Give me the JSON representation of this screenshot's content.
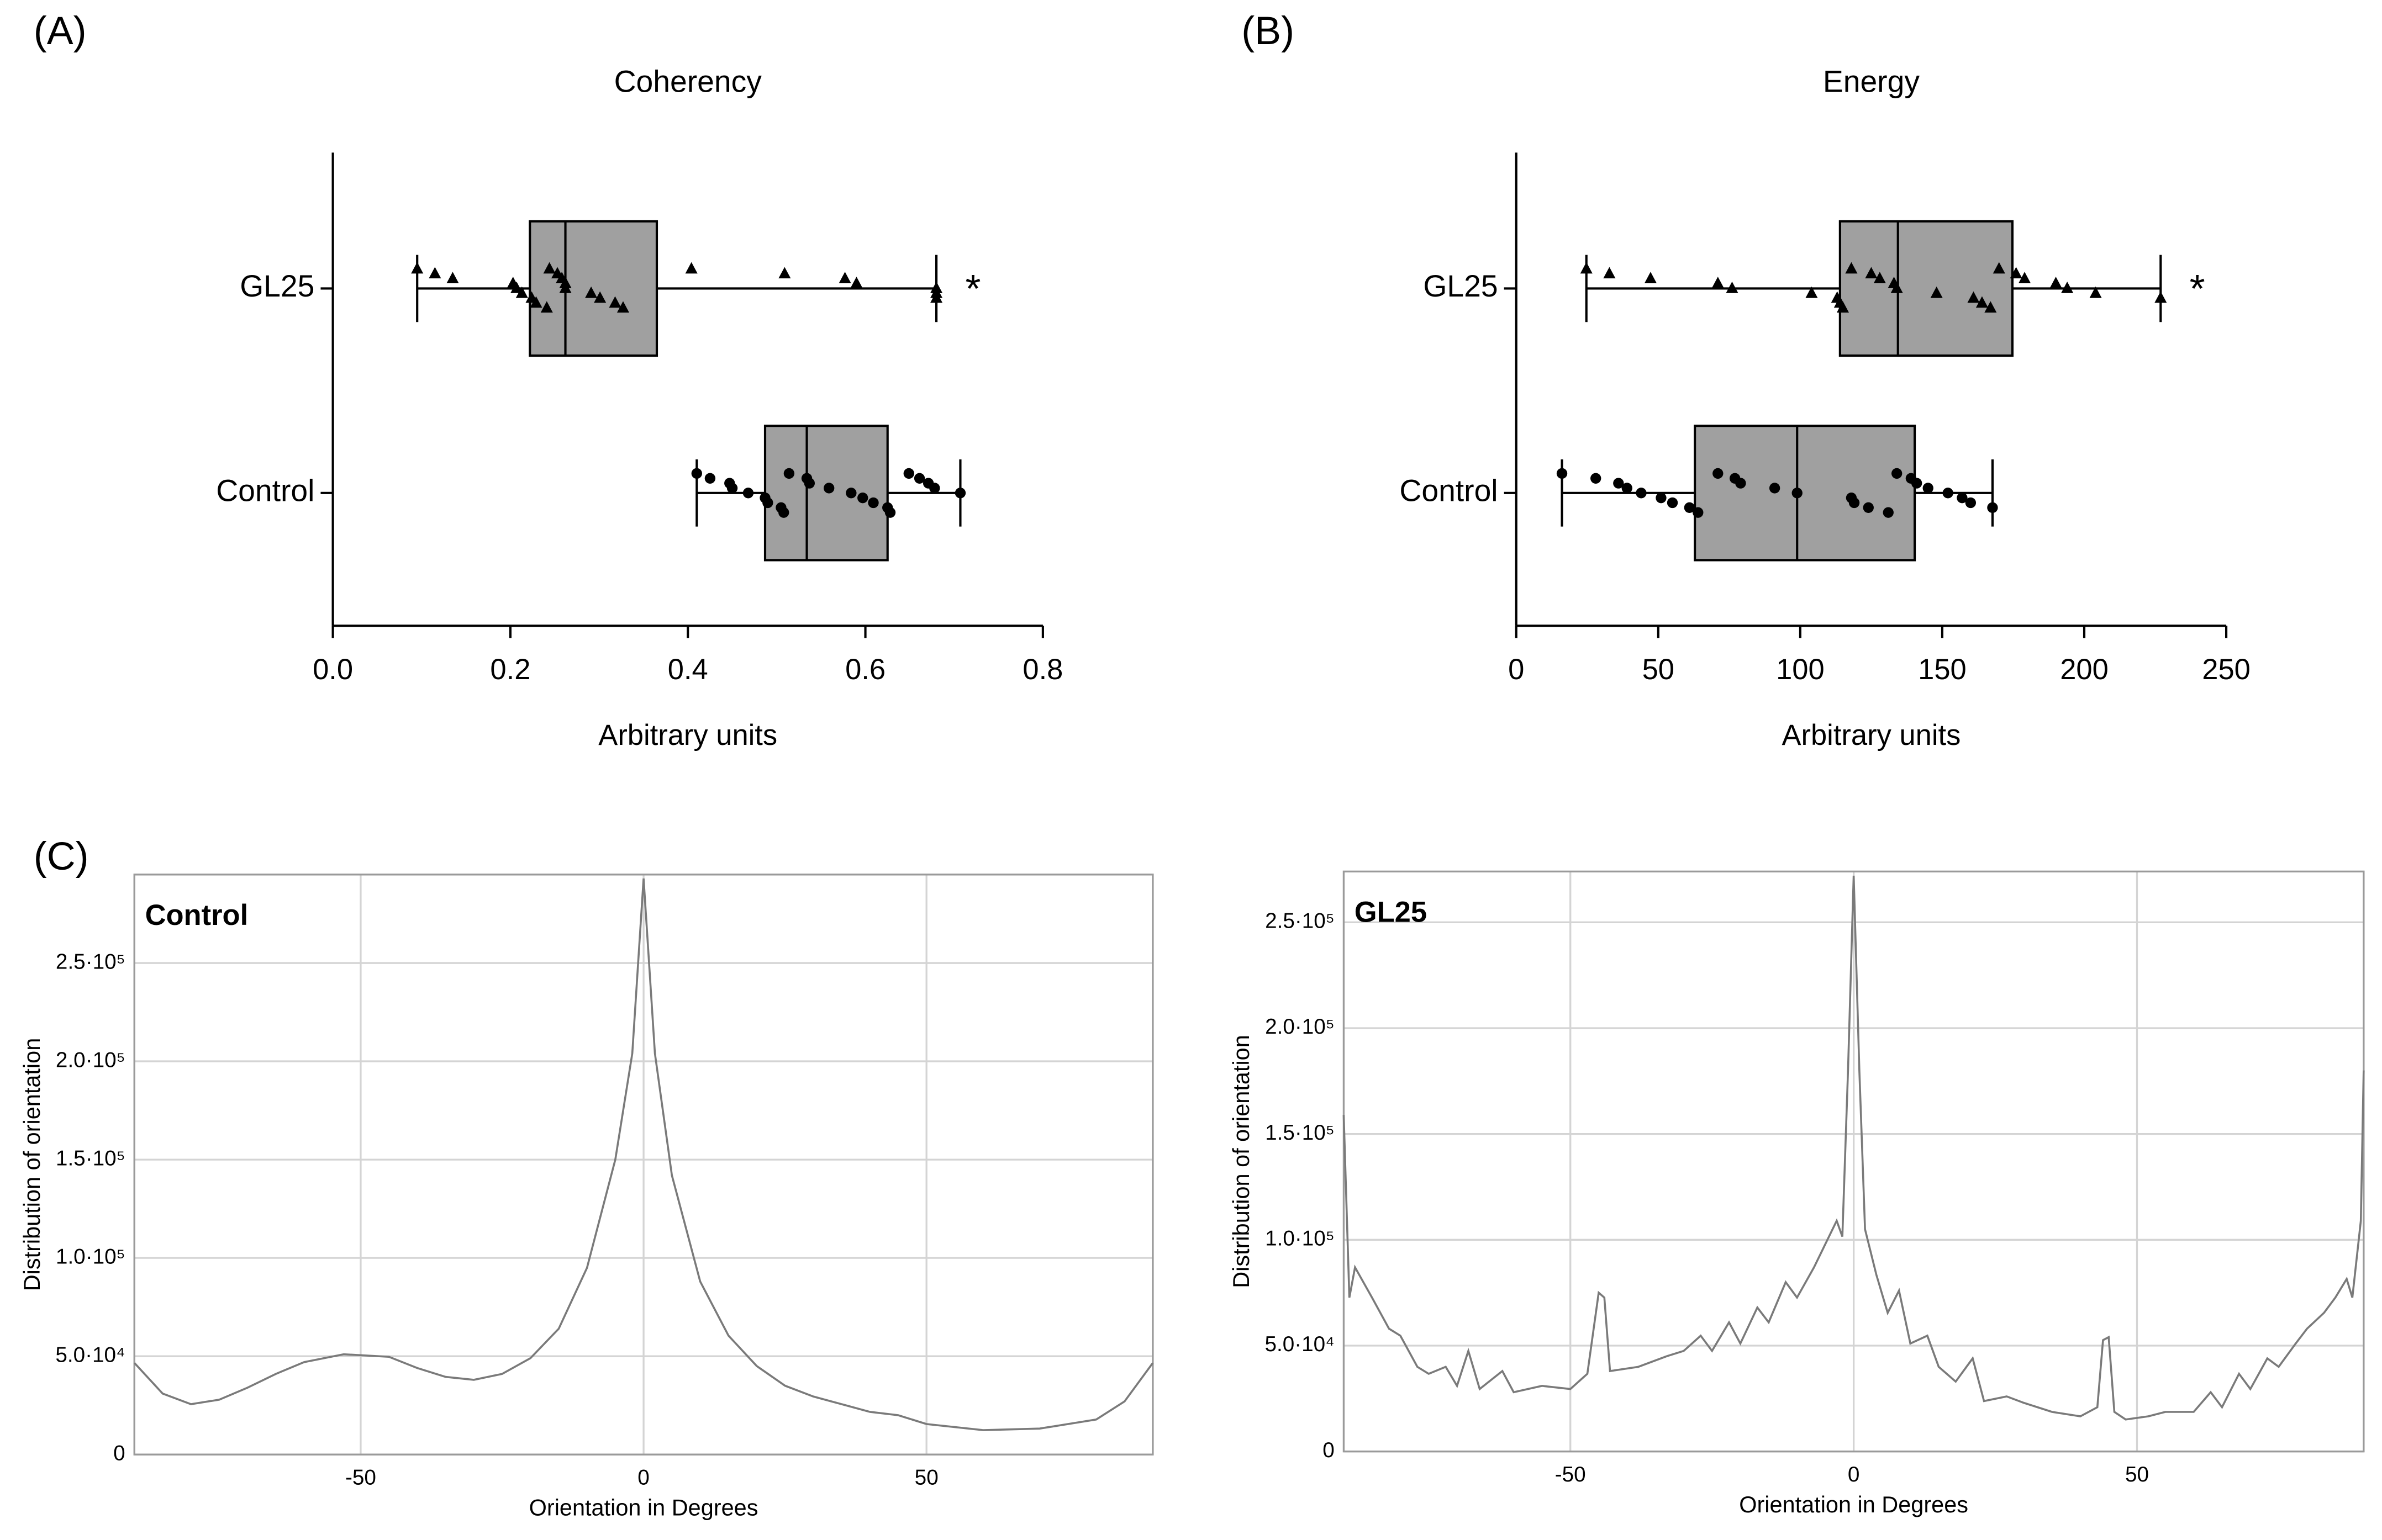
{
  "chart_data": [
    {
      "type": "box",
      "panel": "(A)",
      "title": "Coherency",
      "xlabel": "Arbitrary units",
      "categories": [
        "GL25",
        "Control"
      ],
      "color": "#a0a0a0",
      "boxes": [
        {
          "min": 0.095,
          "q1": 0.222,
          "median": 0.262,
          "q3": 0.365,
          "max": 0.68,
          "marker": "triangle",
          "points": [
            0.095,
            0.115,
            0.135,
            0.203,
            0.207,
            0.213,
            0.224,
            0.229,
            0.241,
            0.244,
            0.253,
            0.258,
            0.262,
            0.262,
            0.291,
            0.301,
            0.318,
            0.327,
            0.404,
            0.509,
            0.577,
            0.59,
            0.68,
            0.68,
            0.68
          ]
        },
        {
          "min": 0.41,
          "q1": 0.487,
          "median": 0.534,
          "q3": 0.625,
          "max": 0.707,
          "marker": "circle",
          "points": [
            0.41,
            0.425,
            0.447,
            0.45,
            0.468,
            0.487,
            0.49,
            0.505,
            0.508,
            0.514,
            0.534,
            0.537,
            0.559,
            0.584,
            0.597,
            0.609,
            0.625,
            0.628,
            0.649,
            0.661,
            0.671,
            0.678,
            0.707
          ]
        }
      ],
      "annotations": [
        "*",
        null
      ],
      "xlim": [
        0,
        0.8
      ],
      "xticks": [
        {
          "value": 0,
          "label": "0.0"
        },
        0.2,
        0.4,
        0.6,
        0.8
      ]
    },
    {
      "type": "box",
      "panel": "(B)",
      "title": "Energy",
      "xlabel": "Arbitrary units",
      "categories": [
        "GL25",
        "Control"
      ],
      "color": "#a0a0a0",
      "boxes": [
        {
          "min": 24.7,
          "q1": 114,
          "median": 134.4,
          "q3": 174.7,
          "max": 226.9,
          "marker": "triangle",
          "points": [
            24.7,
            32.8,
            47.3,
            71,
            76,
            104,
            113,
            114,
            115,
            118,
            125,
            128,
            133,
            134,
            148,
            161,
            164,
            167,
            170,
            176,
            179,
            190,
            194,
            204,
            226.9
          ]
        },
        {
          "min": 16.1,
          "q1": 62.9,
          "median": 98.9,
          "q3": 140.3,
          "max": 167.7,
          "marker": "circle",
          "points": [
            16.1,
            28,
            36,
            39,
            44,
            51,
            55,
            61,
            64,
            71,
            77,
            79,
            91,
            98.9,
            118,
            119,
            124,
            131,
            134,
            139,
            141,
            145,
            152,
            157,
            160,
            167.7
          ]
        }
      ],
      "annotations": [
        "*",
        null
      ],
      "xlim": [
        0,
        250
      ],
      "xticks": [
        0,
        50,
        100,
        150,
        200,
        250
      ]
    },
    {
      "type": "line",
      "panel": "(C)",
      "title": "Control",
      "xlabel": "Orientation in Degrees",
      "ylabel": "Distribution of orientation",
      "color": "#7a7a7a",
      "grid": true,
      "x": [
        -90,
        -85,
        -80,
        -75,
        -70,
        -65,
        -60,
        -53,
        -45,
        -40,
        -35,
        -30,
        -25,
        -20,
        -15,
        -10,
        -5,
        -2,
        0,
        2,
        5,
        10,
        15,
        20,
        25,
        30,
        40,
        45,
        50,
        60,
        70,
        80,
        85,
        90
      ],
      "values": [
        46600,
        31000,
        25600,
        27900,
        34000,
        41000,
        47000,
        51000,
        49700,
        44000,
        39500,
        38000,
        41000,
        49000,
        64000,
        95000,
        150000,
        204000,
        293000,
        204000,
        142000,
        88000,
        60500,
        45000,
        35000,
        29500,
        21700,
        20000,
        15500,
        12400,
        13200,
        17800,
        27000,
        46600
      ],
      "xlim": [
        -90,
        90
      ],
      "xticks": [
        -50,
        0,
        50
      ],
      "ylim": [
        0,
        295000
      ],
      "yticks": [
        0,
        {
          "value": 50000,
          "label": "5.0·10⁴"
        },
        {
          "value": 100000,
          "label": "1.0·10⁵"
        },
        {
          "value": 150000,
          "label": "1.5·10⁵"
        },
        {
          "value": 200000,
          "label": "2.0·10⁵"
        },
        {
          "value": 250000,
          "label": "2.5·10⁵"
        }
      ]
    },
    {
      "type": "line",
      "title": "GL25",
      "xlabel": "Orientation in Degrees",
      "ylabel": "Distribution of orientation",
      "color": "#7a7a7a",
      "grid": true,
      "x": [
        -90,
        -89,
        -88,
        -85,
        -82,
        -80,
        -77,
        -75,
        -72,
        -70,
        -68,
        -66,
        -62,
        -60,
        -55,
        -50,
        -47,
        -45,
        -44,
        -43,
        -38,
        -33,
        -30,
        -27,
        -25,
        -22,
        -20,
        -17,
        -15,
        -12,
        -10,
        -7,
        -5,
        -3,
        -2,
        -1,
        0,
        1,
        2,
        4,
        6,
        8,
        10,
        13,
        15,
        18,
        21,
        23,
        27,
        30,
        35,
        40,
        43,
        44,
        45,
        46,
        48,
        52,
        55,
        60,
        63,
        65,
        68,
        70,
        73,
        75,
        78,
        80,
        83,
        85,
        87,
        88,
        89.5,
        90
      ],
      "values": [
        159000,
        72700,
        87000,
        72700,
        58000,
        54700,
        40000,
        36700,
        40000,
        31000,
        47500,
        29500,
        38000,
        28000,
        31000,
        29500,
        36700,
        75000,
        72700,
        38000,
        40000,
        45000,
        47500,
        54700,
        47500,
        61000,
        51000,
        68000,
        61000,
        80000,
        72700,
        87000,
        98000,
        109000,
        101500,
        180000,
        272000,
        180000,
        105000,
        83500,
        65500,
        76000,
        51000,
        54700,
        40000,
        33000,
        44000,
        23800,
        26000,
        23000,
        18700,
        16600,
        20900,
        52600,
        54000,
        18700,
        15100,
        16600,
        18700,
        18700,
        28000,
        20900,
        36700,
        29500,
        44000,
        40000,
        51000,
        58000,
        65500,
        72700,
        81500,
        72700,
        109000,
        180000
      ],
      "xlim": [
        -90,
        90
      ],
      "xticks": [
        -50,
        0,
        50
      ],
      "ylim": [
        0,
        274000
      ],
      "yticks": [
        0,
        {
          "value": 50000,
          "label": "5.0·10⁴"
        },
        {
          "value": 100000,
          "label": "1.0·10⁵"
        },
        {
          "value": 150000,
          "label": "1.5·10⁵"
        },
        {
          "value": 200000,
          "label": "2.0·10⁵"
        },
        {
          "value": 250000,
          "label": "2.5·10⁵"
        }
      ]
    }
  ]
}
